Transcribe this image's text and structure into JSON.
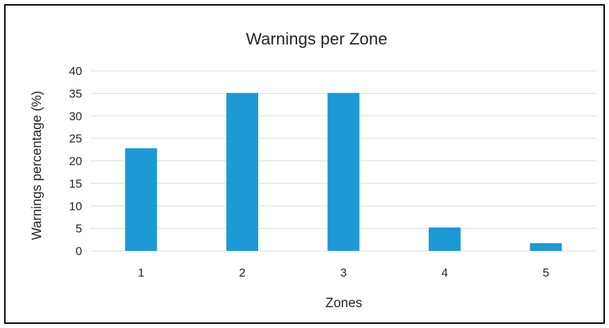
{
  "chart_data": {
    "type": "bar",
    "title": "Warnings per Zone",
    "xlabel": "Zones",
    "ylabel": "Warnings percentage (%)",
    "categories": [
      "1",
      "2",
      "3",
      "4",
      "5"
    ],
    "values": [
      22.8,
      35.1,
      35.1,
      5.2,
      1.7
    ],
    "ylim": [
      0,
      40
    ],
    "yticks": [
      "0",
      "5",
      "10",
      "15",
      "20",
      "25",
      "30",
      "35",
      "40"
    ],
    "grid": true,
    "legend": "none",
    "bar_color": "#1b9ad6",
    "grid_color": "#d9d9d9"
  }
}
